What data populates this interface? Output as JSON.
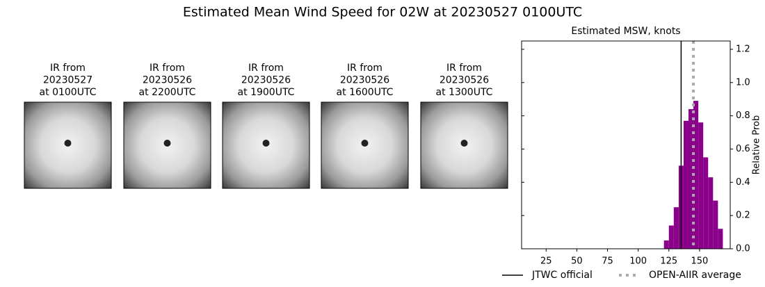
{
  "title": "Estimated Mean Wind Speed for 02W at 20230527 0100UTC",
  "panels": [
    {
      "title": [
        "IR from",
        "20230527",
        "at 0100UTC"
      ]
    },
    {
      "title": [
        "IR from",
        "20230526",
        "at 2200UTC"
      ]
    },
    {
      "title": [
        "IR from",
        "20230526",
        "at 1900UTC"
      ]
    },
    {
      "title": [
        "IR from",
        "20230526",
        "at 1600UTC"
      ]
    },
    {
      "title": [
        "IR from",
        "20230526",
        "at 1300UTC"
      ]
    }
  ],
  "chart_data": {
    "type": "histogram",
    "title": "Estimated MSW, knots",
    "y_label": "Relative Prob",
    "bins": [
      121,
      125,
      129,
      133,
      137,
      141,
      145,
      149,
      153,
      157,
      161,
      165,
      169
    ],
    "values": [
      0.05,
      0.14,
      0.25,
      0.5,
      0.77,
      0.84,
      0.89,
      0.76,
      0.55,
      0.43,
      0.29,
      0.12
    ],
    "color": "#8b008b",
    "lines": [
      {
        "name": "JTWC official",
        "x": 135,
        "color": "#000000",
        "style": "solid"
      },
      {
        "name": "OPEN-AIIR average",
        "x": 145,
        "color": "#aaaaaa",
        "style": "dotted"
      }
    ],
    "xlim": [
      5,
      175
    ],
    "ylim": [
      0,
      1.25
    ],
    "xticks": [
      25,
      50,
      75,
      100,
      125,
      150
    ],
    "yticks": [
      {
        "value": 0,
        "label": "0.0"
      },
      0.2,
      0.4,
      0.6,
      0.8,
      {
        "value": 1,
        "label": "1.0"
      },
      1.2
    ],
    "y_axis_side": "right"
  }
}
